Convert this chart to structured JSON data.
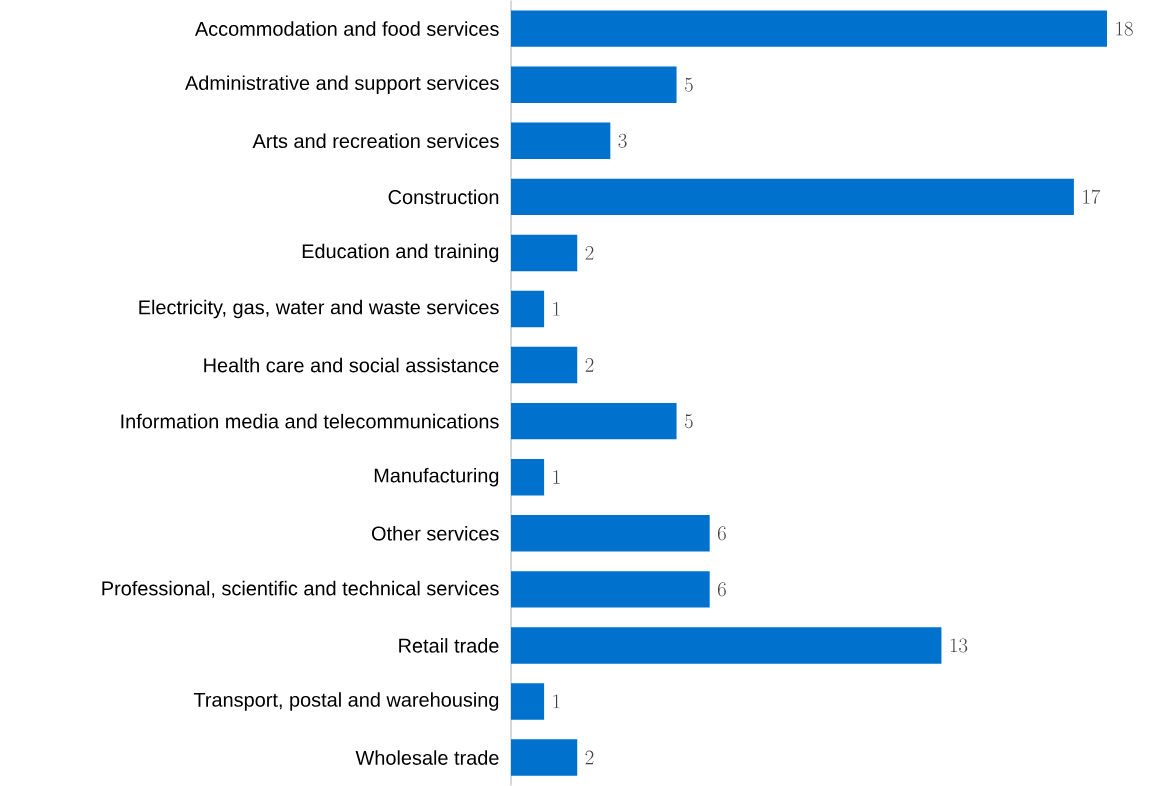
{
  "chart_data": {
    "type": "bar",
    "orientation": "horizontal",
    "categories": [
      "Accommodation and food services",
      "Administrative and support services",
      "Arts and recreation services",
      "Construction",
      "Education and training",
      "Electricity, gas, water and waste services",
      "Health care and social assistance",
      "Information media and telecommunications",
      "Manufacturing",
      "Other services",
      "Professional, scientific and technical services",
      "Retail trade",
      "Transport, postal and warehousing",
      "Wholesale trade"
    ],
    "values": [
      18,
      5,
      3,
      17,
      2,
      1,
      2,
      5,
      1,
      6,
      6,
      13,
      1,
      2
    ],
    "color": "#0072ce",
    "data_labels": true,
    "tick_labels": "y"
  }
}
